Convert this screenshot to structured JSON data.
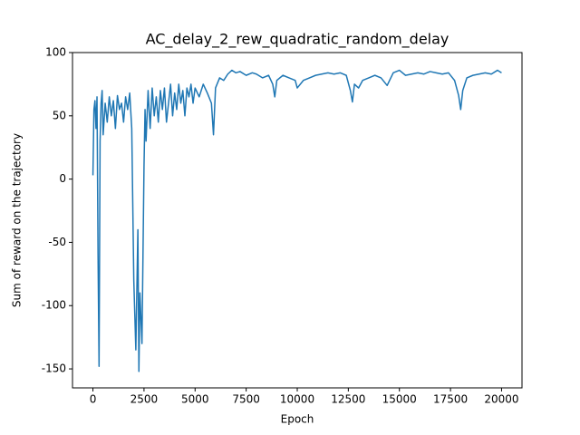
{
  "chart_data": {
    "type": "line",
    "title": "AC_delay_2_rew_quadratic_random_delay",
    "x_label": "Epoch",
    "y_label": "Sum of reward on the trajectory",
    "x": [
      0,
      50,
      100,
      150,
      200,
      250,
      300,
      350,
      400,
      450,
      500,
      600,
      700,
      800,
      900,
      1000,
      1100,
      1200,
      1300,
      1400,
      1500,
      1600,
      1700,
      1800,
      1900,
      2000,
      2100,
      2200,
      2250,
      2300,
      2400,
      2450,
      2500,
      2550,
      2600,
      2700,
      2800,
      2900,
      3000,
      3100,
      3200,
      3300,
      3400,
      3500,
      3600,
      3700,
      3800,
      3900,
      4000,
      4100,
      4200,
      4300,
      4400,
      4500,
      4600,
      4700,
      4800,
      4900,
      5000,
      5200,
      5400,
      5600,
      5800,
      5900,
      6000,
      6200,
      6400,
      6600,
      6800,
      7000,
      7200,
      7500,
      7800,
      8000,
      8300,
      8600,
      8800,
      8900,
      9000,
      9300,
      9600,
      9900,
      10000,
      10300,
      10600,
      10900,
      11200,
      11500,
      11800,
      12100,
      12400,
      12600,
      12700,
      12800,
      13000,
      13200,
      13500,
      13800,
      14100,
      14400,
      14700,
      15000,
      15300,
      15600,
      15900,
      16200,
      16500,
      16800,
      17100,
      17400,
      17700,
      17900,
      18000,
      18100,
      18300,
      18600,
      18900,
      19200,
      19500,
      19800,
      20000
    ],
    "series": [
      {
        "name": "reward",
        "color": "#1f77b4",
        "values": [
          3,
          55,
          62,
          40,
          65,
          -60,
          -148,
          30,
          60,
          70,
          35,
          60,
          45,
          65,
          50,
          62,
          40,
          66,
          55,
          60,
          45,
          65,
          55,
          68,
          40,
          -80,
          -135,
          -40,
          -152,
          -90,
          -130,
          -60,
          10,
          55,
          30,
          70,
          40,
          72,
          50,
          65,
          45,
          70,
          55,
          72,
          45,
          60,
          75,
          50,
          68,
          55,
          75,
          60,
          70,
          50,
          72,
          65,
          75,
          60,
          72,
          65,
          75,
          68,
          60,
          35,
          72,
          80,
          78,
          83,
          86,
          84,
          85,
          82,
          84,
          83,
          80,
          82,
          75,
          65,
          78,
          82,
          80,
          78,
          72,
          78,
          80,
          82,
          83,
          84,
          83,
          84,
          82,
          70,
          61,
          75,
          72,
          78,
          80,
          82,
          80,
          74,
          84,
          86,
          82,
          83,
          84,
          83,
          85,
          84,
          83,
          84,
          78,
          66,
          55,
          70,
          80,
          82,
          83,
          84,
          83,
          86,
          84
        ]
      }
    ],
    "xlim": [
      -1000,
      21000
    ],
    "ylim": [
      -165,
      100
    ],
    "xticks": [
      0,
      2500,
      5000,
      7500,
      10000,
      12500,
      15000,
      17500,
      20000
    ],
    "yticks": [
      -150,
      -100,
      -50,
      0,
      50,
      100
    ]
  }
}
